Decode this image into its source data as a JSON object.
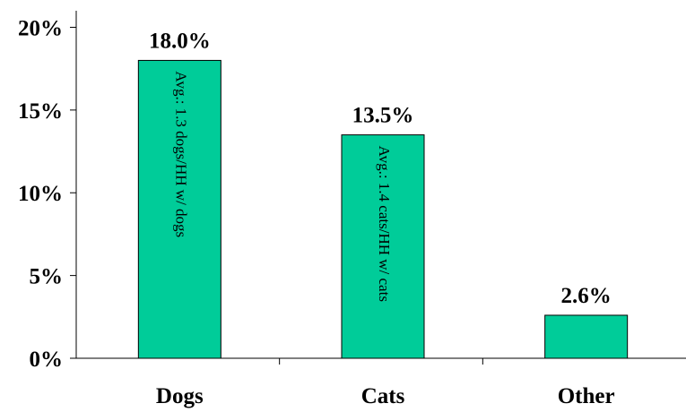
{
  "chart_data": {
    "type": "bar",
    "categories": [
      "Dogs",
      "Cats",
      "Other"
    ],
    "values": [
      18.0,
      13.5,
      2.6
    ],
    "value_labels": [
      "18.0%",
      "13.5%",
      "2.6%"
    ],
    "bar_annotations": [
      "Avg.: 1.3 dogs/HH w/ dogs",
      "Avg.: 1.4 cats/HH w/ cats",
      ""
    ],
    "yticks": [
      0,
      5,
      10,
      15,
      20
    ],
    "ytick_labels": [
      "0%",
      "5%",
      "10%",
      "15%",
      "20%"
    ],
    "ylim": [
      0,
      21
    ],
    "grid": false,
    "legend": "none",
    "title": "",
    "xlabel": "",
    "ylabel": "",
    "colors": {
      "bar_fill": "#00CC99",
      "bar_stroke": "#000000",
      "axis": "#000000"
    }
  }
}
